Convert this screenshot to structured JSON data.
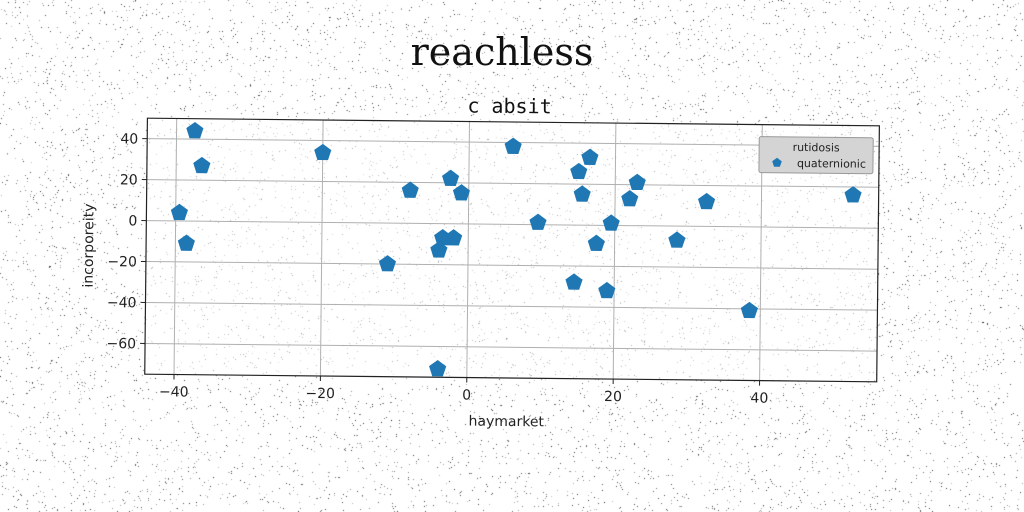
{
  "figure": {
    "suptitle": "reachless"
  },
  "chart_data": {
    "type": "scatter",
    "title": "c absit",
    "xlabel": "haymarket",
    "ylabel": "incorporeity",
    "xlim": [
      -44,
      56
    ],
    "ylim": [
      -75,
      50
    ],
    "xticks": [
      -40,
      -20,
      0,
      20,
      40
    ],
    "yticks": [
      -60,
      -40,
      -20,
      0,
      20,
      40
    ],
    "xtick_labels": [
      "−40",
      "−20",
      "0",
      "20",
      "40"
    ],
    "ytick_labels": [
      "−60",
      "−40",
      "−20",
      "0",
      "20",
      "40"
    ],
    "grid": true,
    "marker": "pentagon",
    "legend": {
      "title": "rutidosis",
      "placement": "top-right"
    },
    "series": [
      {
        "name": "quaternionic",
        "color": "#1f77b4",
        "points": [
          {
            "x": -39.5,
            "y": 4
          },
          {
            "x": -38.5,
            "y": -11
          },
          {
            "x": -37.5,
            "y": 44
          },
          {
            "x": -36.5,
            "y": 27
          },
          {
            "x": -20,
            "y": 34
          },
          {
            "x": -11,
            "y": -20
          },
          {
            "x": -8,
            "y": 16
          },
          {
            "x": -4,
            "y": -13
          },
          {
            "x": -3.5,
            "y": -7
          },
          {
            "x": -4,
            "y": -71
          },
          {
            "x": -2.5,
            "y": 22
          },
          {
            "x": -2,
            "y": -7
          },
          {
            "x": -1,
            "y": 15
          },
          {
            "x": 6,
            "y": 38
          },
          {
            "x": 9.5,
            "y": 1
          },
          {
            "x": 14.5,
            "y": -28
          },
          {
            "x": 15,
            "y": 26
          },
          {
            "x": 15.5,
            "y": 15
          },
          {
            "x": 16.5,
            "y": 33
          },
          {
            "x": 17.5,
            "y": -9
          },
          {
            "x": 19,
            "y": -32
          },
          {
            "x": 19.5,
            "y": 1
          },
          {
            "x": 22,
            "y": 13
          },
          {
            "x": 23,
            "y": 21
          },
          {
            "x": 28.5,
            "y": -7
          },
          {
            "x": 32.5,
            "y": 12
          },
          {
            "x": 38.5,
            "y": -41
          },
          {
            "x": 52.5,
            "y": 16
          }
        ]
      }
    ]
  }
}
